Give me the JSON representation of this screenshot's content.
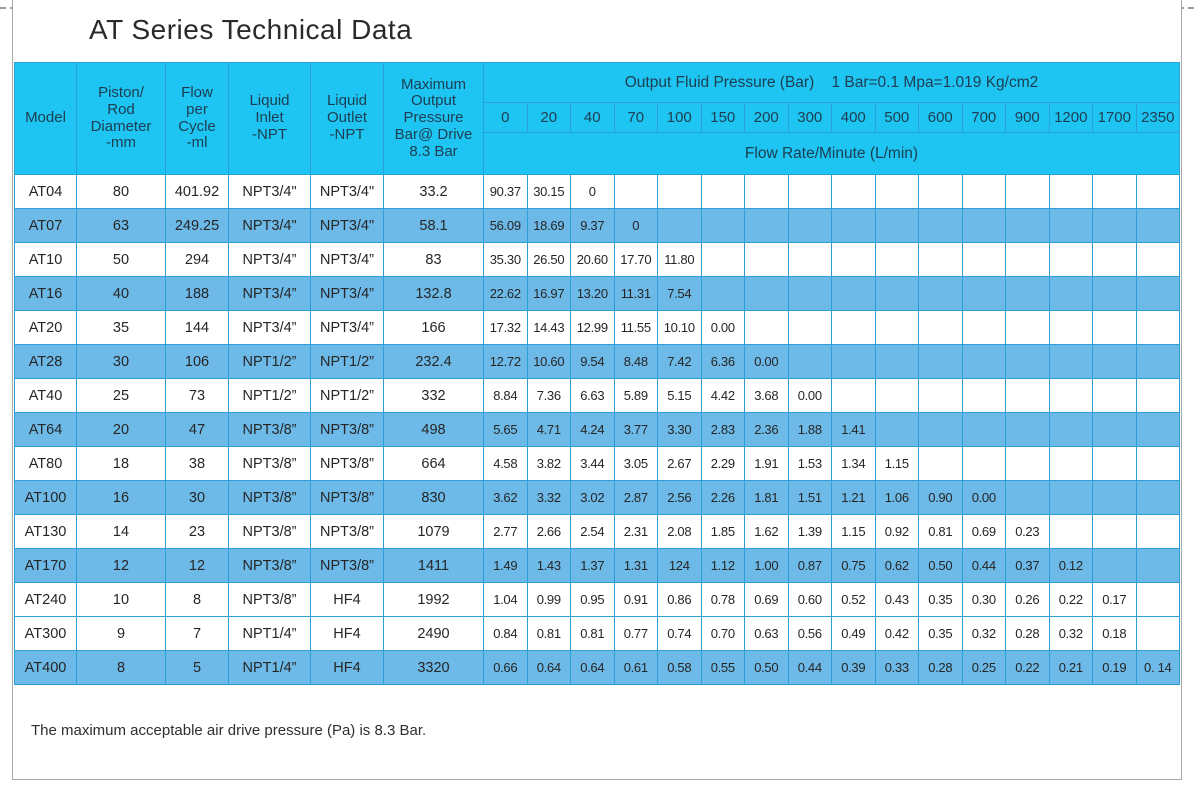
{
  "page": {
    "title": "AT Series Technical Data",
    "footnote": "The maximum acceptable air drive pressure (Pa) is 8.3 Bar."
  },
  "colors": {
    "header_cyan": "#1ec4f2",
    "row_stripe_blue": "#6db9e7",
    "grid_blue": "#2e9ed7",
    "page_border_gray": "#a9a9a9",
    "text_dark": "#262626"
  },
  "table": {
    "left_headers": [
      "Model",
      "Piston/\nRod\nDiameter\n-mm",
      "Flow\nper\nCycle\n-ml",
      "Liquid\nInlet\n-NPT",
      "Liquid\nOutlet\n-NPT",
      "Maximum\nOutput\nPressure\nBar@ Drive\n8.3 Bar"
    ],
    "pressure_group_header": "Output Fluid Pressure (Bar)    1 Bar=0.1 Mpa=1.019 Kg/cm2",
    "pressure_ticks": [
      "0",
      "20",
      "40",
      "70",
      "100",
      "150",
      "200",
      "300",
      "400",
      "500",
      "600",
      "700",
      "900",
      "1200",
      "1700",
      "2350"
    ],
    "flow_band_label": "Flow Rate/Minute (L/min)",
    "rows": [
      {
        "model": "AT04",
        "piston_rod_diameter_mm": "80",
        "flow_per_cycle_ml": "401.92",
        "liquid_inlet_npt": "NPT3/4\"",
        "liquid_outlet_npt": "NPT3/4\"",
        "max_output_pressure_bar": "33.2",
        "shaded": false,
        "flow_rates": [
          "90.37",
          "30.15",
          "0",
          "",
          "",
          "",
          "",
          "",
          "",
          "",
          "",
          "",
          "",
          "",
          "",
          ""
        ]
      },
      {
        "model": "AT07",
        "piston_rod_diameter_mm": "63",
        "flow_per_cycle_ml": "249.25",
        "liquid_inlet_npt": "NPT3/4\"",
        "liquid_outlet_npt": "NPT3/4\"",
        "max_output_pressure_bar": "58.1",
        "shaded": true,
        "flow_rates": [
          "56.09",
          "18.69",
          "9.37",
          "0",
          "",
          "",
          "",
          "",
          "",
          "",
          "",
          "",
          "",
          "",
          "",
          ""
        ]
      },
      {
        "model": "AT10",
        "piston_rod_diameter_mm": "50",
        "flow_per_cycle_ml": "294",
        "liquid_inlet_npt": "NPT3/4”",
        "liquid_outlet_npt": "NPT3/4”",
        "max_output_pressure_bar": "83",
        "shaded": false,
        "flow_rates": [
          "35.30",
          "26.50",
          "20.60",
          "17.70",
          "11.80",
          "",
          "",
          "",
          "",
          "",
          "",
          "",
          "",
          "",
          "",
          ""
        ]
      },
      {
        "model": "AT16",
        "piston_rod_diameter_mm": "40",
        "flow_per_cycle_ml": "188",
        "liquid_inlet_npt": "NPT3/4”",
        "liquid_outlet_npt": "NPT3/4”",
        "max_output_pressure_bar": "132.8",
        "shaded": true,
        "flow_rates": [
          "22.62",
          "16.97",
          "13.20",
          "11.31",
          "7.54",
          "",
          "",
          "",
          "",
          "",
          "",
          "",
          "",
          "",
          "",
          ""
        ]
      },
      {
        "model": "AT20",
        "piston_rod_diameter_mm": "35",
        "flow_per_cycle_ml": "144",
        "liquid_inlet_npt": "NPT3/4”",
        "liquid_outlet_npt": "NPT3/4”",
        "max_output_pressure_bar": "166",
        "shaded": false,
        "flow_rates": [
          "17.32",
          "14.43",
          "12.99",
          "11.55",
          "10.10",
          "0.00",
          "",
          "",
          "",
          "",
          "",
          "",
          "",
          "",
          "",
          ""
        ]
      },
      {
        "model": "AT28",
        "piston_rod_diameter_mm": "30",
        "flow_per_cycle_ml": "106",
        "liquid_inlet_npt": "NPT1/2”",
        "liquid_outlet_npt": "NPT1/2”",
        "max_output_pressure_bar": "232.4",
        "shaded": true,
        "flow_rates": [
          "12.72",
          "10.60",
          "9.54",
          "8.48",
          "7.42",
          "6.36",
          "0.00",
          "",
          "",
          "",
          "",
          "",
          "",
          "",
          "",
          ""
        ]
      },
      {
        "model": "AT40",
        "piston_rod_diameter_mm": "25",
        "flow_per_cycle_ml": "73",
        "liquid_inlet_npt": "NPT1/2”",
        "liquid_outlet_npt": "NPT1/2”",
        "max_output_pressure_bar": "332",
        "shaded": false,
        "flow_rates": [
          "8.84",
          "7.36",
          "6.63",
          "5.89",
          "5.15",
          "4.42",
          "3.68",
          "0.00",
          "",
          "",
          "",
          "",
          "",
          "",
          "",
          ""
        ]
      },
      {
        "model": "AT64",
        "piston_rod_diameter_mm": "20",
        "flow_per_cycle_ml": "47",
        "liquid_inlet_npt": "NPT3/8”",
        "liquid_outlet_npt": "NPT3/8”",
        "max_output_pressure_bar": "498",
        "shaded": true,
        "flow_rates": [
          "5.65",
          "4.71",
          "4.24",
          "3.77",
          "3.30",
          "2.83",
          "2.36",
          "1.88",
          "1.41",
          "",
          "",
          "",
          "",
          "",
          "",
          ""
        ]
      },
      {
        "model": "AT80",
        "piston_rod_diameter_mm": "18",
        "flow_per_cycle_ml": "38",
        "liquid_inlet_npt": "NPT3/8”",
        "liquid_outlet_npt": "NPT3/8”",
        "max_output_pressure_bar": "664",
        "shaded": false,
        "flow_rates": [
          "4.58",
          "3.82",
          "3.44",
          "3.05",
          "2.67",
          "2.29",
          "1.91",
          "1.53",
          "1.34",
          "1.15",
          "",
          "",
          "",
          "",
          "",
          ""
        ]
      },
      {
        "model": "AT100",
        "piston_rod_diameter_mm": "16",
        "flow_per_cycle_ml": "30",
        "liquid_inlet_npt": "NPT3/8”",
        "liquid_outlet_npt": "NPT3/8”",
        "max_output_pressure_bar": "830",
        "shaded": true,
        "flow_rates": [
          "3.62",
          "3.32",
          "3.02",
          "2.87",
          "2.56",
          "2.26",
          "1.81",
          "1.51",
          "1.21",
          "1.06",
          "0.90",
          "0.00",
          "",
          "",
          "",
          ""
        ]
      },
      {
        "model": "AT130",
        "piston_rod_diameter_mm": "14",
        "flow_per_cycle_ml": "23",
        "liquid_inlet_npt": "NPT3/8”",
        "liquid_outlet_npt": "NPT3/8”",
        "max_output_pressure_bar": "1079",
        "shaded": false,
        "flow_rates": [
          "2.77",
          "2.66",
          "2.54",
          "2.31",
          "2.08",
          "1.85",
          "1.62",
          "1.39",
          "1.15",
          "0.92",
          "0.81",
          "0.69",
          "0.23",
          "",
          "",
          ""
        ]
      },
      {
        "model": "AT170",
        "piston_rod_diameter_mm": "12",
        "flow_per_cycle_ml": "12",
        "liquid_inlet_npt": "NPT3/8”",
        "liquid_outlet_npt": "NPT3/8”",
        "max_output_pressure_bar": "1411",
        "shaded": true,
        "flow_rates": [
          "1.49",
          "1.43",
          "1.37",
          "1.31",
          "124",
          "1.12",
          "1.00",
          "0.87",
          "0.75",
          "0.62",
          "0.50",
          "0.44",
          "0.37",
          "0.12",
          "",
          ""
        ]
      },
      {
        "model": "AT240",
        "piston_rod_diameter_mm": "10",
        "flow_per_cycle_ml": "8",
        "liquid_inlet_npt": "NPT3/8”",
        "liquid_outlet_npt": "HF4",
        "max_output_pressure_bar": "1992",
        "shaded": false,
        "flow_rates": [
          "1.04",
          "0.99",
          "0.95",
          "0.91",
          "0.86",
          "0.78",
          "0.69",
          "0.60",
          "0.52",
          "0.43",
          "0.35",
          "0.30",
          "0.26",
          "0.22",
          "0.17",
          ""
        ]
      },
      {
        "model": "AT300",
        "piston_rod_diameter_mm": "9",
        "flow_per_cycle_ml": "7",
        "liquid_inlet_npt": "NPT1/4”",
        "liquid_outlet_npt": "HF4",
        "max_output_pressure_bar": "2490",
        "shaded": false,
        "flow_rates": [
          "0.84",
          "0.81",
          "0.81",
          "0.77",
          "0.74",
          "0.70",
          "0.63",
          "0.56",
          "0.49",
          "0.42",
          "0.35",
          "0.32",
          "0.28",
          "0.32",
          "0.18",
          ""
        ]
      },
      {
        "model": "AT400",
        "piston_rod_diameter_mm": "8",
        "flow_per_cycle_ml": "5",
        "liquid_inlet_npt": "NPT1/4”",
        "liquid_outlet_npt": "HF4",
        "max_output_pressure_bar": "3320",
        "shaded": true,
        "flow_rates": [
          "0.66",
          "0.64",
          "0.64",
          "0.61",
          "0.58",
          "0.55",
          "0.50",
          "0.44",
          "0.39",
          "0.33",
          "0.28",
          "0.25",
          "0.22",
          "0.21",
          "0.19",
          "0. 14"
        ]
      }
    ]
  }
}
